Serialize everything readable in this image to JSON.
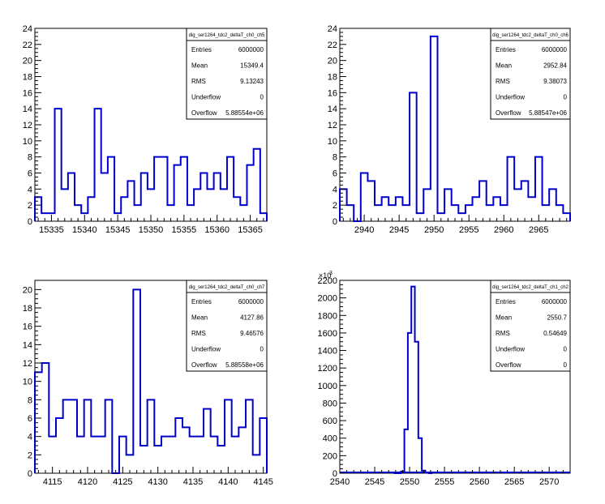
{
  "chart_data": [
    {
      "type": "histogram",
      "xlim": [
        15332.5,
        15367.5
      ],
      "ylim": [
        0,
        24
      ],
      "xticks": [
        15335,
        15340,
        15345,
        15350,
        15355,
        15360,
        15365
      ],
      "yticks": [
        0,
        2,
        4,
        6,
        8,
        10,
        12,
        14,
        16,
        18,
        20,
        22,
        24
      ],
      "y_exponent": "",
      "bin_width": 1,
      "bins_x": [
        15333,
        15334,
        15335,
        15336,
        15337,
        15338,
        15339,
        15340,
        15341,
        15342,
        15343,
        15344,
        15345,
        15346,
        15347,
        15348,
        15349,
        15350,
        15351,
        15352,
        15353,
        15354,
        15355,
        15356,
        15357,
        15358,
        15359,
        15360,
        15361,
        15362,
        15363,
        15364,
        15365,
        15366,
        15367
      ],
      "values": [
        3,
        1,
        1,
        14,
        4,
        6,
        2,
        1,
        3,
        14,
        6,
        8,
        1,
        3,
        5,
        2,
        6,
        4,
        8,
        8,
        2,
        7,
        8,
        2,
        4,
        6,
        4,
        6,
        4,
        8,
        3,
        2,
        7,
        9,
        1
      ],
      "line_color": "#0000cc",
      "stats": {
        "title": "dig_ser1264_tdc2_deltaT_ch0_ch5",
        "rows": [
          {
            "key": "Entries",
            "value": "6000000"
          },
          {
            "key": "Mean",
            "value": "15349.4"
          },
          {
            "key": "RMS",
            "value": "9.13243"
          },
          {
            "key": "Underflow",
            "value": "0"
          },
          {
            "key": "Overflow",
            "value": "5.88554e+06"
          }
        ]
      }
    },
    {
      "type": "histogram",
      "xlim": [
        2936.5,
        2969.5
      ],
      "ylim": [
        0,
        24
      ],
      "xticks": [
        2940,
        2945,
        2950,
        2955,
        2960,
        2965
      ],
      "yticks": [
        0,
        2,
        4,
        6,
        8,
        10,
        12,
        14,
        16,
        18,
        20,
        22,
        24
      ],
      "y_exponent": "",
      "bin_width": 1,
      "bins_x": [
        2937,
        2938,
        2939,
        2940,
        2941,
        2942,
        2943,
        2944,
        2945,
        2946,
        2947,
        2948,
        2949,
        2950,
        2951,
        2952,
        2953,
        2954,
        2955,
        2956,
        2957,
        2958,
        2959,
        2960,
        2961,
        2962,
        2963,
        2964,
        2965,
        2966,
        2967,
        2968,
        2969
      ],
      "values": [
        4,
        2,
        0,
        6,
        5,
        2,
        3,
        2,
        3,
        2,
        16,
        1,
        4,
        23,
        1,
        4,
        2,
        1,
        2,
        3,
        5,
        2,
        3,
        2,
        8,
        4,
        5,
        3,
        8,
        2,
        4,
        2,
        1
      ],
      "line_color": "#0000cc",
      "stats": {
        "title": "dig_ser1264_tdc2_deltaT_ch0_ch6",
        "rows": [
          {
            "key": "Entries",
            "value": "6000000"
          },
          {
            "key": "Mean",
            "value": "2952.84"
          },
          {
            "key": "RMS",
            "value": "9.38073"
          },
          {
            "key": "Underflow",
            "value": "0"
          },
          {
            "key": "Overflow",
            "value": "5.88547e+06"
          }
        ]
      }
    },
    {
      "type": "histogram",
      "xlim": [
        4112.5,
        4145.5
      ],
      "ylim": [
        0,
        21
      ],
      "xticks": [
        4115,
        4120,
        4125,
        4130,
        4135,
        4140,
        4145
      ],
      "yticks": [
        0,
        2,
        4,
        6,
        8,
        10,
        12,
        14,
        16,
        18,
        20
      ],
      "y_exponent": "",
      "bin_width": 1,
      "bins_x": [
        4113,
        4114,
        4115,
        4116,
        4117,
        4118,
        4119,
        4120,
        4121,
        4122,
        4123,
        4124,
        4125,
        4126,
        4127,
        4128,
        4129,
        4130,
        4131,
        4132,
        4133,
        4134,
        4135,
        4136,
        4137,
        4138,
        4139,
        4140,
        4141,
        4142,
        4143,
        4144,
        4145
      ],
      "values": [
        11,
        12,
        4,
        6,
        8,
        8,
        4,
        8,
        4,
        4,
        8,
        0,
        4,
        2,
        20,
        3,
        8,
        3,
        4,
        4,
        6,
        5,
        4,
        4,
        7,
        4,
        3,
        8,
        4,
        5,
        8,
        2,
        6
      ],
      "line_color": "#0000cc",
      "stats": {
        "title": "dig_ser1264_tdc2_deltaT_ch0_ch7",
        "rows": [
          {
            "key": "Entries",
            "value": "6000000"
          },
          {
            "key": "Mean",
            "value": "4127.86"
          },
          {
            "key": "RMS",
            "value": "9.46576"
          },
          {
            "key": "Underflow",
            "value": "0"
          },
          {
            "key": "Overflow",
            "value": "5.88558e+06"
          }
        ]
      }
    },
    {
      "type": "histogram",
      "xlim": [
        2540,
        2573
      ],
      "ylim": [
        0,
        2200
      ],
      "xticks": [
        2540,
        2545,
        2550,
        2555,
        2560,
        2565,
        2570
      ],
      "yticks": [
        0,
        200,
        400,
        600,
        800,
        1000,
        1200,
        1400,
        1600,
        1800,
        2000,
        2200
      ],
      "y_exponent": "×10",
      "y_exponent_power": "3",
      "bin_width": 0.5,
      "bins_x": [
        2548,
        2548.5,
        2549,
        2549.5,
        2550,
        2550.5,
        2551,
        2551.5,
        2552,
        2552.5,
        2553
      ],
      "values": [
        0,
        0,
        20,
        500,
        1600,
        2130,
        1500,
        400,
        30,
        5,
        0
      ],
      "line_color": "#0000cc",
      "stats": {
        "title": "dig_ser1264_tdc2_deltaT_ch1_ch2",
        "rows": [
          {
            "key": "Entries",
            "value": "6000000"
          },
          {
            "key": "Mean",
            "value": "2550.7"
          },
          {
            "key": "RMS",
            "value": "0.54649"
          },
          {
            "key": "Underflow",
            "value": "0"
          },
          {
            "key": "Overflow",
            "value": "0"
          }
        ]
      }
    }
  ]
}
